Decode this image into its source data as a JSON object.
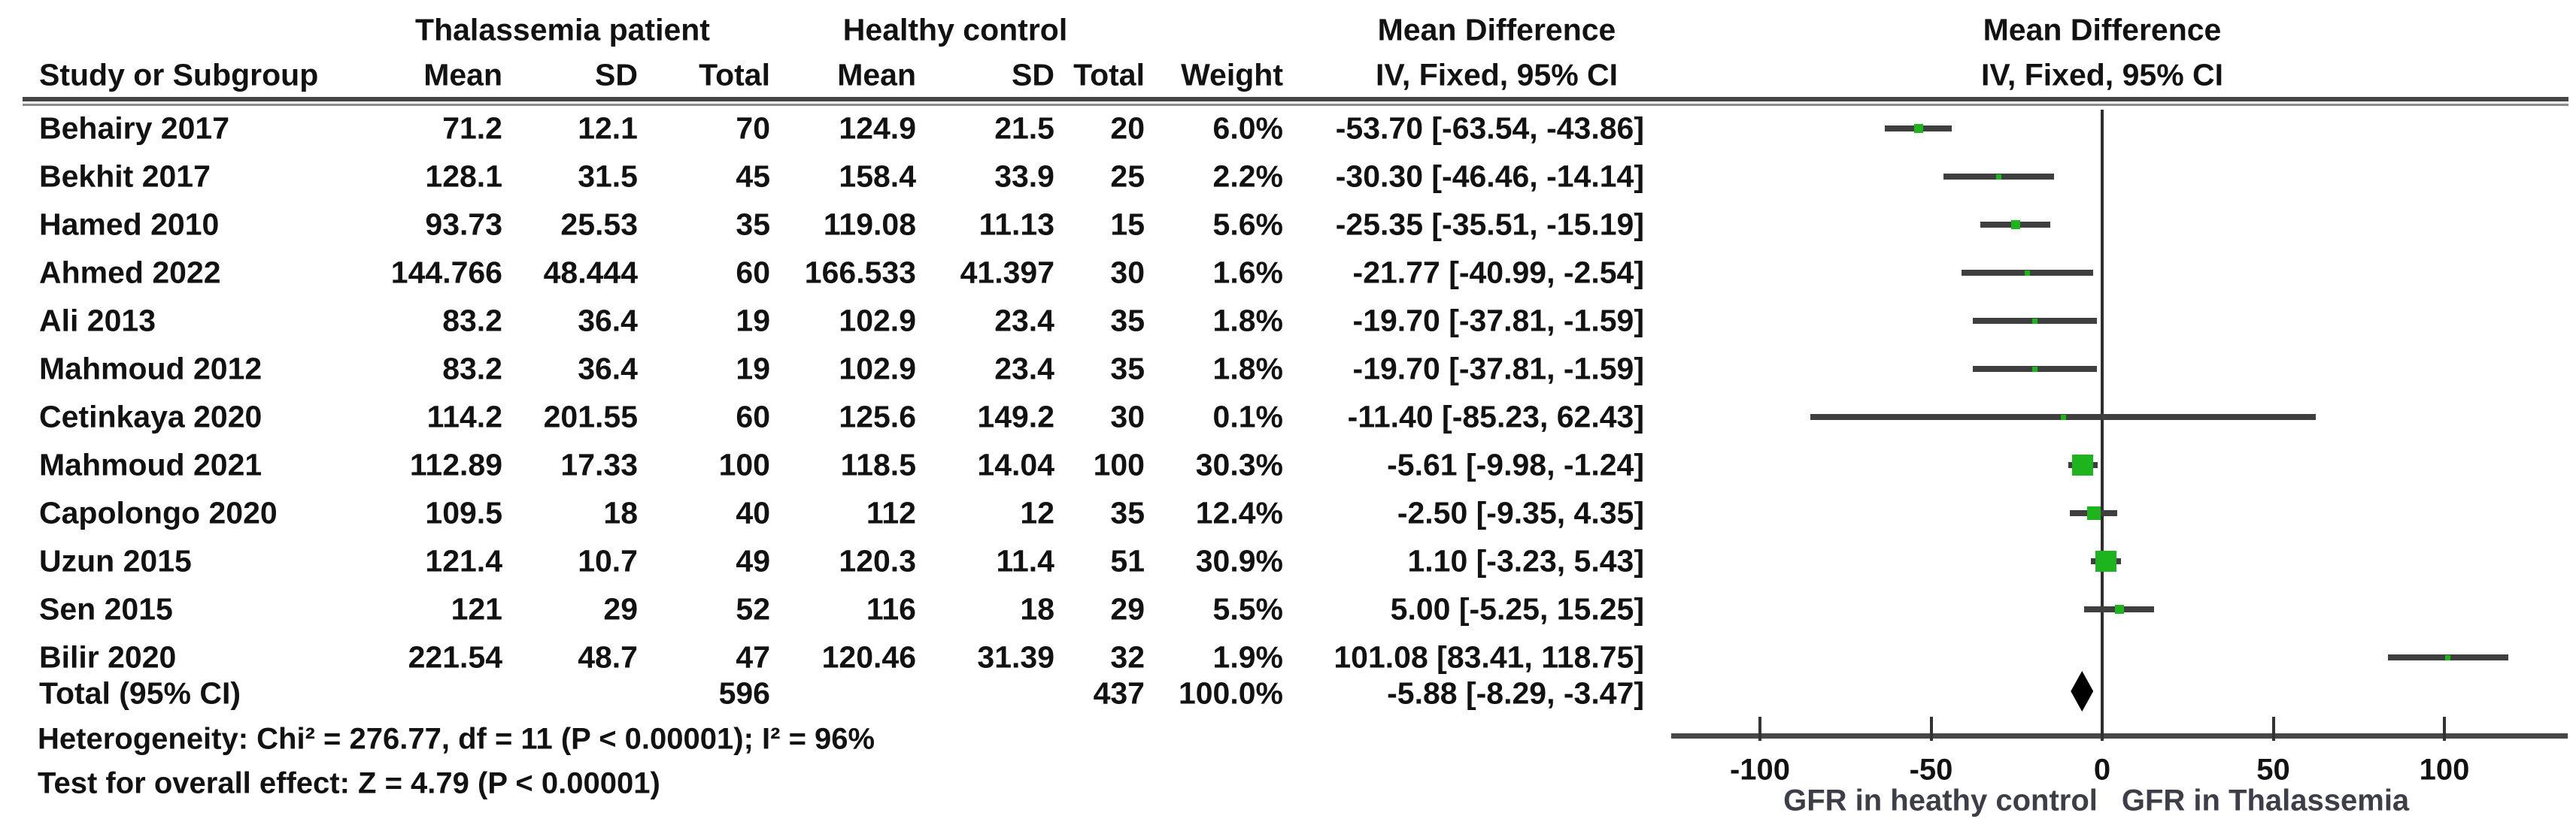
{
  "header": {
    "group_thalassemia": "Thalassemia patient",
    "group_control": "Healthy control",
    "mean_difference_table": "Mean Difference",
    "mean_difference_plot": "Mean Difference",
    "study_col": "Study or Subgroup",
    "mean_col": "Mean",
    "sd_col": "SD",
    "total_col": "Total",
    "weight_col": "Weight",
    "iv_fixed_table": "IV, Fixed, 95% CI",
    "iv_fixed_plot": "IV, Fixed, 95% CI"
  },
  "chart_data": {
    "type": "scatter",
    "variant": "forest-plot-fixed-effect-meta-analysis",
    "effect_measure": "Mean Difference, IV, Fixed, 95% CI",
    "rows": [
      {
        "study": "Behairy 2017",
        "t_mean": "71.2",
        "t_sd": "12.1",
        "t_total": "70",
        "c_mean": "124.9",
        "c_sd": "21.5",
        "c_total": "20",
        "weight": "6.0%",
        "md": "-53.70 [-63.54, -43.86]",
        "est": -53.7,
        "lo": -63.54,
        "hi": -43.86,
        "w": 6.0
      },
      {
        "study": "Bekhit 2017",
        "t_mean": "128.1",
        "t_sd": "31.5",
        "t_total": "45",
        "c_mean": "158.4",
        "c_sd": "33.9",
        "c_total": "25",
        "weight": "2.2%",
        "md": "-30.30 [-46.46, -14.14]",
        "est": -30.3,
        "lo": -46.46,
        "hi": -14.14,
        "w": 2.2
      },
      {
        "study": "Hamed 2010",
        "t_mean": "93.73",
        "t_sd": "25.53",
        "t_total": "35",
        "c_mean": "119.08",
        "c_sd": "11.13",
        "c_total": "15",
        "weight": "5.6%",
        "md": "-25.35 [-35.51, -15.19]",
        "est": -25.35,
        "lo": -35.51,
        "hi": -15.19,
        "w": 5.6
      },
      {
        "study": "Ahmed 2022",
        "t_mean": "144.766",
        "t_sd": "48.444",
        "t_total": "60",
        "c_mean": "166.533",
        "c_sd": "41.397",
        "c_total": "30",
        "weight": "1.6%",
        "md": "-21.77 [-40.99, -2.54]",
        "est": -21.77,
        "lo": -40.99,
        "hi": -2.54,
        "w": 1.6
      },
      {
        "study": "Ali 2013",
        "t_mean": "83.2",
        "t_sd": "36.4",
        "t_total": "19",
        "c_mean": "102.9",
        "c_sd": "23.4",
        "c_total": "35",
        "weight": "1.8%",
        "md": "-19.70 [-37.81, -1.59]",
        "est": -19.7,
        "lo": -37.81,
        "hi": -1.59,
        "w": 1.8
      },
      {
        "study": "Mahmoud 2012",
        "t_mean": "83.2",
        "t_sd": "36.4",
        "t_total": "19",
        "c_mean": "102.9",
        "c_sd": "23.4",
        "c_total": "35",
        "weight": "1.8%",
        "md": "-19.70 [-37.81, -1.59]",
        "est": -19.7,
        "lo": -37.81,
        "hi": -1.59,
        "w": 1.8
      },
      {
        "study": "Cetinkaya 2020",
        "t_mean": "114.2",
        "t_sd": "201.55",
        "t_total": "60",
        "c_mean": "125.6",
        "c_sd": "149.2",
        "c_total": "30",
        "weight": "0.1%",
        "md": "-11.40 [-85.23, 62.43]",
        "est": -11.4,
        "lo": -85.23,
        "hi": 62.43,
        "w": 0.1
      },
      {
        "study": "Mahmoud 2021",
        "t_mean": "112.89",
        "t_sd": "17.33",
        "t_total": "100",
        "c_mean": "118.5",
        "c_sd": "14.04",
        "c_total": "100",
        "weight": "30.3%",
        "md": "-5.61 [-9.98, -1.24]",
        "est": -5.61,
        "lo": -9.98,
        "hi": -1.24,
        "w": 30.3
      },
      {
        "study": "Capolongo 2020",
        "t_mean": "109.5",
        "t_sd": "18",
        "t_total": "40",
        "c_mean": "112",
        "c_sd": "12",
        "c_total": "35",
        "weight": "12.4%",
        "md": "-2.50 [-9.35, 4.35]",
        "est": -2.5,
        "lo": -9.35,
        "hi": 4.35,
        "w": 12.4
      },
      {
        "study": "Uzun 2015",
        "t_mean": "121.4",
        "t_sd": "10.7",
        "t_total": "49",
        "c_mean": "120.3",
        "c_sd": "11.4",
        "c_total": "51",
        "weight": "30.9%",
        "md": "1.10 [-3.23, 5.43]",
        "est": 1.1,
        "lo": -3.23,
        "hi": 5.43,
        "w": 30.9
      },
      {
        "study": "Sen 2015",
        "t_mean": "121",
        "t_sd": "29",
        "t_total": "52",
        "c_mean": "116",
        "c_sd": "18",
        "c_total": "29",
        "weight": "5.5%",
        "md": "5.00 [-5.25, 15.25]",
        "est": 5.0,
        "lo": -5.25,
        "hi": 15.25,
        "w": 5.5
      },
      {
        "study": "Bilir 2020",
        "t_mean": "221.54",
        "t_sd": "48.7",
        "t_total": "47",
        "c_mean": "120.46",
        "c_sd": "31.39",
        "c_total": "32",
        "weight": "1.9%",
        "md": "101.08 [83.41, 118.75]",
        "est": 101.08,
        "lo": 83.41,
        "hi": 118.75,
        "w": 1.9
      }
    ],
    "total": {
      "label": "Total (95% CI)",
      "t_total": "596",
      "c_total": "437",
      "weight": "100.0%",
      "md": "-5.88 [-8.29, -3.47]",
      "est": -5.88,
      "lo": -8.29,
      "hi": -3.47
    },
    "axis": {
      "ticks": [
        -100,
        -50,
        0,
        50,
        100
      ],
      "xmin": -126,
      "xmax": 136,
      "label_left": "GFR in heathy control",
      "label_right": "GFR in Thalassemia"
    },
    "footnotes": {
      "heterogeneity": "Heterogeneity: Chi² = 276.77, df = 11 (P < 0.00001); I² = 96%",
      "overall_effect": "Test for overall effect: Z = 4.79 (P < 0.00001)"
    }
  },
  "colors": {
    "marker_green": "#1eb41e",
    "ci_line": "#3f3f3f",
    "diamond": "#000000"
  }
}
